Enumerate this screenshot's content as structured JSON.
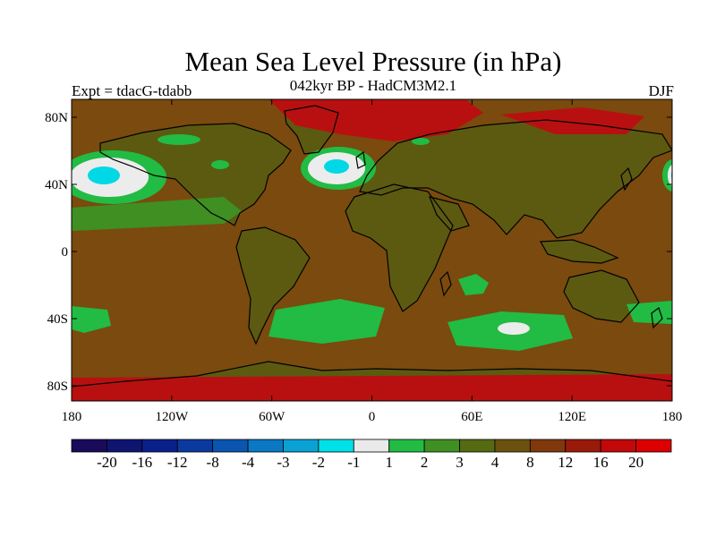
{
  "title": "Mean Sea Level Pressure (in hPa)",
  "subtitle": "042kyr BP - HadCM3M2.1",
  "left_label": "Expt = tdacG-tdabb",
  "right_label": "DJF",
  "axes": {
    "lat_ticks": [
      "80N",
      "40N",
      "0",
      "40S",
      "80S"
    ],
    "lon_ticks": [
      "180",
      "120W",
      "60W",
      "0",
      "60E",
      "120E",
      "180"
    ]
  },
  "colorbar": {
    "levels": [
      "-20",
      "-16",
      "-12",
      "-8",
      "-4",
      "-3",
      "-2",
      "-1",
      "1",
      "2",
      "3",
      "4",
      "8",
      "12",
      "16",
      "20"
    ],
    "colors": [
      "#1a0a5a",
      "#0f1470",
      "#0a208a",
      "#0a3a9e",
      "#0a55b0",
      "#0a78c2",
      "#0aa2d4",
      "#00e0e8",
      "#eaeaea",
      "#22bb44",
      "#3f8f22",
      "#566a12",
      "#6b520e",
      "#80380c",
      "#9a1a0a",
      "#c20808",
      "#dd0000"
    ]
  },
  "map_colors": {
    "ocean_base": "#7a4a0e",
    "land": "#5c5a10",
    "high_red": "#b81010",
    "green": "#22bb44",
    "dark_green": "#3f8f22",
    "white": "#ececec",
    "cyan": "#00d8e6",
    "coastline": "#000000"
  }
}
